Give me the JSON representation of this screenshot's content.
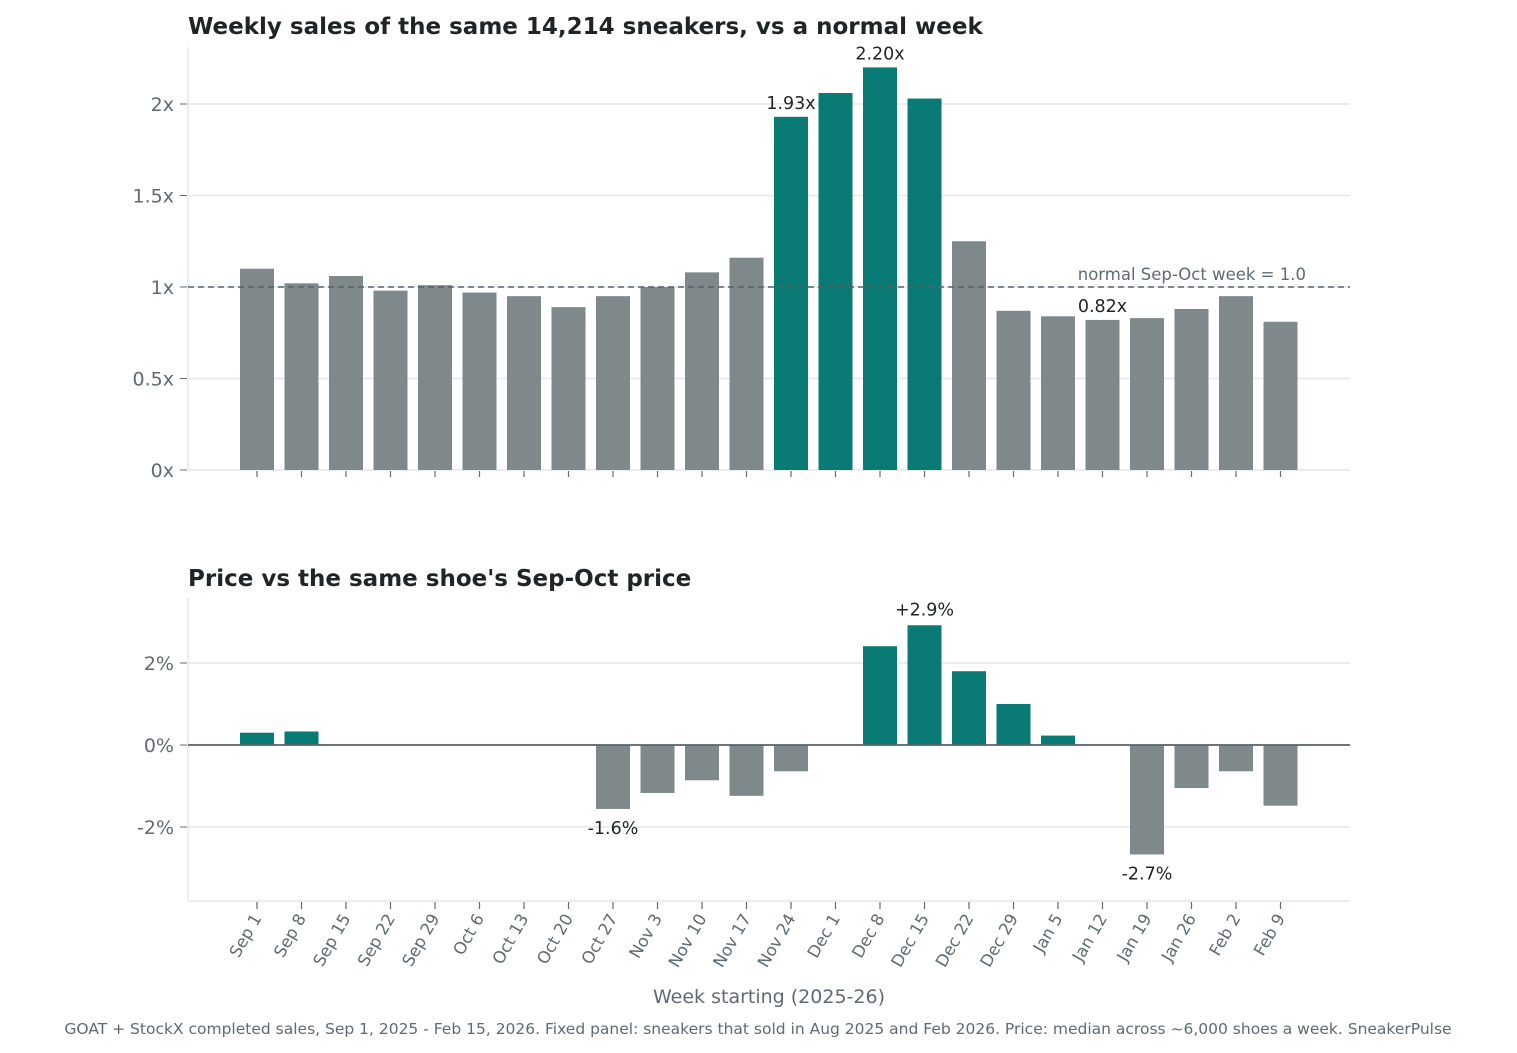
{
  "chart_data": [
    {
      "type": "bar",
      "title": "Weekly sales of the same 14,214 sneakers, vs a normal week",
      "categories": [
        "Sep 1",
        "Sep 8",
        "Sep 15",
        "Sep 22",
        "Sep 29",
        "Oct 6",
        "Oct 13",
        "Oct 20",
        "Oct 27",
        "Nov 3",
        "Nov 10",
        "Nov 17",
        "Nov 24",
        "Dec 1",
        "Dec 8",
        "Dec 15",
        "Dec 22",
        "Dec 29",
        "Jan 5",
        "Jan 12",
        "Jan 19",
        "Jan 26",
        "Feb 2",
        "Feb 9"
      ],
      "values": [
        1.1,
        1.02,
        1.06,
        0.98,
        1.01,
        0.97,
        0.95,
        0.89,
        0.95,
        1.0,
        1.08,
        1.16,
        1.93,
        2.06,
        2.2,
        2.03,
        1.25,
        0.87,
        0.84,
        0.82,
        0.83,
        0.88,
        0.95,
        0.81
      ],
      "highlighted": [
        "Nov 24",
        "Dec 1",
        "Dec 8",
        "Dec 15"
      ],
      "yticks": [
        "0x",
        "0.5x",
        "1x",
        "1.5x",
        "2x"
      ],
      "ytick_values": [
        0,
        0.5,
        1,
        1.5,
        2
      ],
      "ylim": [
        0,
        2.31
      ],
      "reference_line": {
        "value": 1.0,
        "label": "normal Sep-Oct week = 1.0"
      },
      "annotations": [
        {
          "category": "Nov 24",
          "text": "1.93x"
        },
        {
          "category": "Dec 8",
          "text": "2.20x"
        },
        {
          "category": "Jan 12",
          "text": "0.82x"
        }
      ],
      "grid": true
    },
    {
      "type": "bar",
      "title": "Price vs the same shoe's Sep-Oct price",
      "categories": [
        "Sep 1",
        "Sep 8",
        "Sep 15",
        "Sep 22",
        "Sep 29",
        "Oct 6",
        "Oct 13",
        "Oct 20",
        "Oct 27",
        "Nov 3",
        "Nov 10",
        "Nov 17",
        "Nov 24",
        "Dec 1",
        "Dec 8",
        "Dec 15",
        "Dec 22",
        "Dec 29",
        "Jan 5",
        "Jan 12",
        "Jan 19",
        "Jan 26",
        "Feb 2",
        "Feb 9"
      ],
      "values": [
        0.3,
        0.33,
        0,
        0,
        0,
        0,
        0,
        0,
        -1.56,
        -1.17,
        -0.86,
        -1.24,
        -0.64,
        0,
        2.41,
        2.92,
        1.8,
        1.0,
        0.23,
        0,
        -2.67,
        -1.05,
        -0.64,
        -1.48
      ],
      "unit": "%",
      "yticks": [
        "-2%",
        "0%",
        "2%"
      ],
      "ytick_values": [
        -2,
        0,
        2
      ],
      "ylim": [
        -3.8,
        3.6
      ],
      "annotations": [
        {
          "category": "Oct 27",
          "text": "-1.6%"
        },
        {
          "category": "Dec 15",
          "text": "+2.9%"
        },
        {
          "category": "Jan 19",
          "text": "-2.7%"
        }
      ],
      "xlabel": "Week starting (2025-26)",
      "grid": true
    }
  ],
  "footnote": "GOAT + StockX completed sales, Sep 1, 2025 - Feb 15, 2026. Fixed panel: sneakers that sold in Aug 2025 and Feb 2026. Price: median across ~6,000 shoes a week. SneakerPulse",
  "colors": {
    "highlight": "#097a74",
    "base": "#7f898c",
    "grid": "#e3e8ea",
    "axis": "#5f6b72",
    "text": "#1f2426",
    "muted": "#5f6b72"
  }
}
